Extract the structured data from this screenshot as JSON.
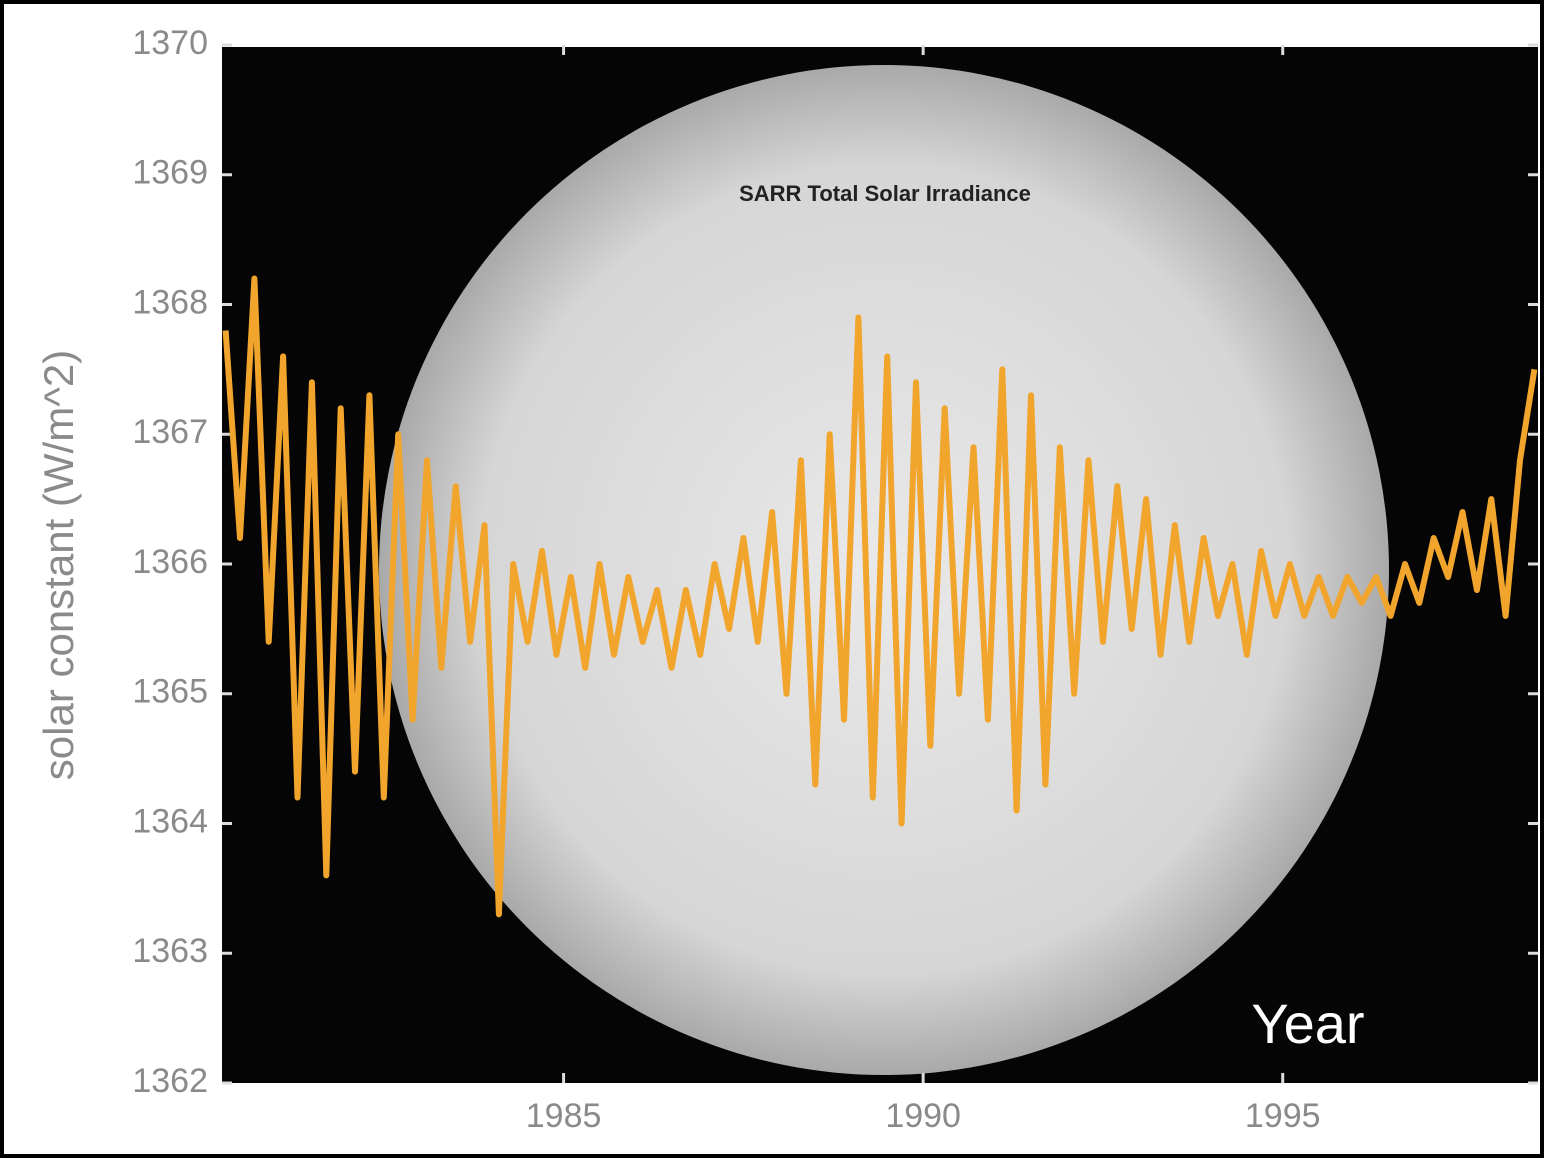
{
  "chart_data": {
    "type": "line",
    "title": "SARR Total Solar Irradiance",
    "ylabel": "solar constant (W/m^2)",
    "xlabel": "Year",
    "xlim": [
      1980.25,
      1998.55
    ],
    "xticks": [
      1985,
      1990,
      1995
    ],
    "ylim": [
      1362,
      1370
    ],
    "yticks": [
      1362,
      1363,
      1364,
      1365,
      1366,
      1367,
      1368,
      1369,
      1370
    ],
    "grid": false,
    "x": [
      1980.3,
      1980.5,
      1980.7,
      1980.9,
      1981.1,
      1981.3,
      1981.5,
      1981.7,
      1981.9,
      1982.1,
      1982.3,
      1982.5,
      1982.7,
      1982.9,
      1983.1,
      1983.3,
      1983.5,
      1983.7,
      1983.9,
      1984.1,
      1984.3,
      1984.5,
      1984.7,
      1984.9,
      1985.1,
      1985.3,
      1985.5,
      1985.7,
      1985.9,
      1986.1,
      1986.3,
      1986.5,
      1986.7,
      1986.9,
      1987.1,
      1987.3,
      1987.5,
      1987.7,
      1987.9,
      1988.1,
      1988.3,
      1988.5,
      1988.7,
      1988.9,
      1989.1,
      1989.3,
      1989.5,
      1989.7,
      1989.9,
      1990.1,
      1990.3,
      1990.5,
      1990.7,
      1990.9,
      1991.1,
      1991.3,
      1991.5,
      1991.7,
      1991.9,
      1992.1,
      1992.3,
      1992.5,
      1992.7,
      1992.9,
      1993.1,
      1993.3,
      1993.5,
      1993.7,
      1993.9,
      1994.1,
      1994.3,
      1994.5,
      1994.7,
      1994.9,
      1995.1,
      1995.3,
      1995.5,
      1995.7,
      1995.9,
      1996.1,
      1996.3,
      1996.5,
      1996.7,
      1996.9,
      1997.1,
      1997.3,
      1997.5,
      1997.7,
      1997.9,
      1998.1,
      1998.3,
      1998.5
    ],
    "series": [
      {
        "name": "SARR",
        "color": "#f2a52c",
        "values": [
          1367.8,
          1366.2,
          1368.2,
          1365.4,
          1367.6,
          1364.2,
          1367.4,
          1363.6,
          1367.2,
          1364.4,
          1367.3,
          1364.2,
          1367.0,
          1364.8,
          1366.8,
          1365.2,
          1366.6,
          1365.4,
          1366.3,
          1363.3,
          1366.0,
          1365.4,
          1366.1,
          1365.3,
          1365.9,
          1365.2,
          1366.0,
          1365.3,
          1365.9,
          1365.4,
          1365.8,
          1365.2,
          1365.8,
          1365.3,
          1366.0,
          1365.5,
          1366.2,
          1365.4,
          1366.4,
          1365.0,
          1366.8,
          1364.3,
          1367.0,
          1364.8,
          1367.9,
          1364.2,
          1367.6,
          1364.0,
          1367.4,
          1364.6,
          1367.2,
          1365.0,
          1366.9,
          1364.8,
          1367.5,
          1364.1,
          1367.3,
          1364.3,
          1366.9,
          1365.0,
          1366.8,
          1365.4,
          1366.6,
          1365.5,
          1366.5,
          1365.3,
          1366.3,
          1365.4,
          1366.2,
          1365.6,
          1366.0,
          1365.3,
          1366.1,
          1365.6,
          1366.0,
          1365.6,
          1365.9,
          1365.6,
          1365.9,
          1365.7,
          1365.9,
          1365.6,
          1366.0,
          1365.7,
          1366.2,
          1365.9,
          1366.4,
          1365.8,
          1366.5,
          1365.6,
          1366.8,
          1367.5
        ]
      }
    ]
  }
}
